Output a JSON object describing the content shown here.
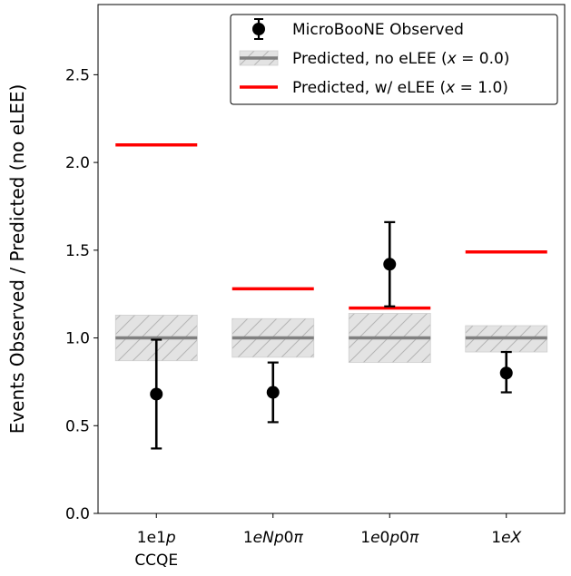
{
  "chart_data": {
    "type": "errorbar",
    "ylabel": "Events Observed / Predicted (no eLEE)",
    "xlabel": "",
    "ylim": [
      0.0,
      2.9
    ],
    "yticks": [
      "0.0",
      "0.5",
      "1.0",
      "1.5",
      "2.0",
      "2.5"
    ],
    "categories": [
      {
        "lines": [
          [
            {
              "t": "1e1",
              "i": false
            },
            {
              "t": "p",
              "i": true
            }
          ],
          [
            {
              "t": "CCQE",
              "i": false
            }
          ]
        ]
      },
      {
        "lines": [
          [
            {
              "t": "1",
              "i": false
            },
            {
              "t": "eNp",
              "i": true
            },
            {
              "t": "0",
              "i": false
            },
            {
              "t": "π",
              "i": true
            }
          ]
        ]
      },
      {
        "lines": [
          [
            {
              "t": "1",
              "i": false
            },
            {
              "t": "e",
              "i": true
            },
            {
              "t": "0",
              "i": false
            },
            {
              "t": "p",
              "i": true
            },
            {
              "t": "0",
              "i": false
            },
            {
              "t": "π",
              "i": true
            }
          ]
        ]
      },
      {
        "lines": [
          [
            {
              "t": "1",
              "i": false
            },
            {
              "t": "eX",
              "i": true
            }
          ]
        ]
      }
    ],
    "observed": {
      "name": "MicroBooNE Observed",
      "color": "#000000",
      "values": [
        0.68,
        0.69,
        1.42,
        0.8
      ],
      "err_low": [
        0.31,
        0.17,
        0.24,
        0.11
      ],
      "err_high": [
        0.31,
        0.17,
        0.24,
        0.12
      ]
    },
    "predicted_no_elee": {
      "name": "Predicted, no eLEE",
      "x_value": "0.0",
      "line_color": "#808080",
      "band_color": "#e3e3e3",
      "hatch_color": "#b5b5b5",
      "values": [
        1.0,
        1.0,
        1.0,
        1.0
      ],
      "band_low": [
        0.87,
        0.89,
        0.86,
        0.92
      ],
      "band_high": [
        1.13,
        1.11,
        1.14,
        1.07
      ]
    },
    "predicted_w_elee": {
      "name": "Predicted, w/ eLEE",
      "x_value": "1.0",
      "color": "#ff0000",
      "values": [
        2.1,
        1.28,
        1.17,
        1.49
      ]
    },
    "legend": {
      "placement": "top-right",
      "entries": [
        {
          "prefix": "MicroBooNE Observed",
          "var": "",
          "value": ""
        },
        {
          "prefix": "Predicted, no eLEE (",
          "var": "x",
          "value": " = 0.0)"
        },
        {
          "prefix": "Predicted, w/ eLEE (",
          "var": "x",
          "value": " = 1.0)"
        }
      ]
    },
    "grid": false
  }
}
